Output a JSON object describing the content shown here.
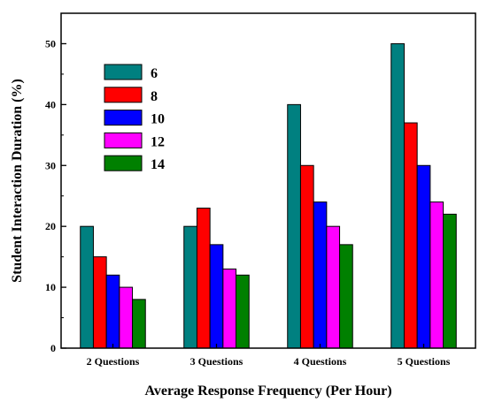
{
  "chart_data": {
    "type": "bar",
    "xlabel": "Average Response Frequency (Per Hour)",
    "ylabel": "Student Interaction Duration (%)",
    "categories": [
      "2 Questions",
      "3 Questions",
      "4 Questions",
      "5 Questions"
    ],
    "ylim": [
      0,
      55
    ],
    "yticks": [
      0,
      10,
      20,
      30,
      40,
      50
    ],
    "grid": false,
    "legend_position": "top-left",
    "series": [
      {
        "name": "6",
        "color": "#008080",
        "values": [
          20,
          20,
          40,
          50
        ]
      },
      {
        "name": "8",
        "color": "#ff0000",
        "values": [
          15,
          23,
          30,
          37
        ]
      },
      {
        "name": "10",
        "color": "#0000ff",
        "values": [
          12,
          17,
          24,
          30
        ]
      },
      {
        "name": "12",
        "color": "#ff00ff",
        "values": [
          10,
          13,
          20,
          24
        ]
      },
      {
        "name": "14",
        "color": "#008000",
        "values": [
          8,
          12,
          17,
          22
        ]
      }
    ]
  }
}
